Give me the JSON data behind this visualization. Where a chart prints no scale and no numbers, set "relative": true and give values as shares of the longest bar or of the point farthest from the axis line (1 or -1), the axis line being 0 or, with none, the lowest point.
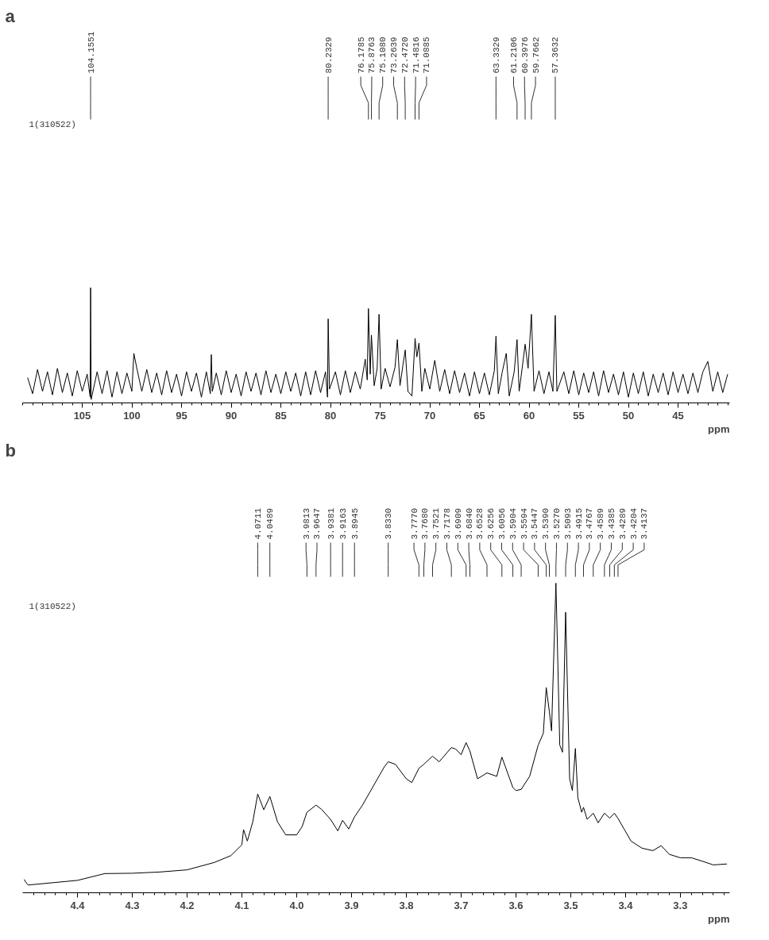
{
  "chart_data": [
    {
      "type": "line",
      "title": "a",
      "xlabel": "ppm",
      "relative": true,
      "xlim": [
        111,
        39.8
      ],
      "xticks": [
        105,
        100,
        95,
        90,
        85,
        80,
        75,
        70,
        65,
        60,
        55,
        50,
        45
      ],
      "grid": false,
      "marker": "none",
      "line_style": "solid",
      "annotations": [
        "1(310522)",
        {
          "text": "104.1551",
          "x": 104.1551
        },
        {
          "text": "80.2329",
          "x": 80.2329
        },
        {
          "text": "76.1785",
          "x": 76.1785
        },
        {
          "text": "75.8763",
          "x": 75.8763
        },
        {
          "text": "75.1080",
          "x": 75.108
        },
        {
          "text": "73.2639",
          "x": 73.2639
        },
        {
          "text": "72.4720",
          "x": 72.472
        },
        {
          "text": "71.4816",
          "x": 71.4816
        },
        {
          "text": "71.0885",
          "x": 71.0885
        },
        {
          "text": "63.3329",
          "x": 63.3329
        },
        {
          "text": "61.2106",
          "x": 61.2106
        },
        {
          "text": "60.3976",
          "x": 60.3976
        },
        {
          "text": "59.7662",
          "x": 59.7662
        },
        {
          "text": "57.3632",
          "x": 57.3632
        }
      ],
      "series": [
        {
          "color": "#000000",
          "x": [
            110.5,
            110,
            109.5,
            109,
            108.5,
            108,
            107.5,
            107,
            106.5,
            106,
            105.5,
            105,
            104.5,
            104.2,
            104.1551,
            104.1,
            103.5,
            103,
            102.5,
            102,
            101.5,
            101,
            100.5,
            100,
            99.8,
            99.5,
            99,
            98.5,
            98,
            97.5,
            97,
            96.5,
            96,
            95.5,
            95,
            94.5,
            94,
            93.5,
            93,
            92.5,
            92.1,
            92,
            91.9,
            91.5,
            91,
            90.5,
            90,
            89.5,
            89,
            88.5,
            88,
            87.5,
            87,
            86.5,
            86,
            85.5,
            85,
            84.5,
            84,
            83.5,
            83,
            82.5,
            82,
            81.5,
            81,
            80.5,
            80.3,
            80.2329,
            80.1,
            79.5,
            79,
            78.5,
            78,
            77.5,
            77,
            76.5,
            76.3,
            76.1785,
            76,
            75.8763,
            75.6,
            75.3,
            75.108,
            74.9,
            74.5,
            74,
            73.5,
            73.2639,
            73,
            72.7,
            72.472,
            72.2,
            71.8,
            71.4816,
            71.3,
            71.0885,
            70.8,
            70.5,
            70,
            69.5,
            69,
            68.5,
            68,
            67.5,
            67,
            66.5,
            66,
            65.5,
            65,
            64.5,
            64,
            63.5,
            63.3329,
            63.1,
            62.7,
            62.3,
            62,
            61.5,
            61.2106,
            61,
            60.7,
            60.3976,
            60.1,
            59.7662,
            59.5,
            59,
            58.5,
            58,
            57.6,
            57.3632,
            57.2,
            56.5,
            56,
            55.5,
            55,
            54.5,
            54,
            53.5,
            53,
            52.5,
            52,
            51.5,
            51,
            50.5,
            50,
            49.5,
            49,
            48.5,
            48,
            47.5,
            47,
            46.5,
            46,
            45.5,
            45,
            44.5,
            44,
            43.5,
            43,
            42.5,
            42,
            41.5,
            41,
            40.5,
            40
          ],
          "values": [
            0.22,
            0.08,
            0.29,
            0.1,
            0.27,
            0.07,
            0.3,
            0.09,
            0.26,
            0.06,
            0.28,
            0.1,
            0.25,
            0.05,
            1.0,
            0.03,
            0.27,
            0.08,
            0.28,
            0.05,
            0.27,
            0.08,
            0.26,
            0.1,
            0.43,
            0.3,
            0.1,
            0.29,
            0.09,
            0.26,
            0.07,
            0.28,
            0.09,
            0.25,
            0.06,
            0.27,
            0.1,
            0.26,
            0.05,
            0.27,
            0.08,
            0.42,
            0.1,
            0.26,
            0.07,
            0.28,
            0.09,
            0.25,
            0.06,
            0.27,
            0.1,
            0.26,
            0.07,
            0.28,
            0.09,
            0.25,
            0.08,
            0.27,
            0.1,
            0.26,
            0.06,
            0.27,
            0.07,
            0.28,
            0.09,
            0.27,
            0.05,
            0.73,
            0.12,
            0.27,
            0.07,
            0.28,
            0.09,
            0.27,
            0.12,
            0.38,
            0.2,
            0.82,
            0.25,
            0.59,
            0.15,
            0.3,
            0.77,
            0.12,
            0.3,
            0.14,
            0.31,
            0.55,
            0.15,
            0.33,
            0.46,
            0.1,
            0.06,
            0.56,
            0.4,
            0.52,
            0.1,
            0.3,
            0.12,
            0.37,
            0.1,
            0.29,
            0.08,
            0.28,
            0.09,
            0.26,
            0.06,
            0.27,
            0.08,
            0.26,
            0.07,
            0.28,
            0.58,
            0.08,
            0.27,
            0.43,
            0.06,
            0.27,
            0.55,
            0.1,
            0.3,
            0.51,
            0.3,
            0.77,
            0.1,
            0.28,
            0.08,
            0.27,
            0.1,
            0.76,
            0.1,
            0.27,
            0.08,
            0.28,
            0.07,
            0.26,
            0.09,
            0.27,
            0.06,
            0.28,
            0.09,
            0.25,
            0.07,
            0.27,
            0.05,
            0.26,
            0.08,
            0.27,
            0.06,
            0.25,
            0.09,
            0.26,
            0.07,
            0.27,
            0.09,
            0.25,
            0.08,
            0.26,
            0.09,
            0.27,
            0.36,
            0.1,
            0.27,
            0.09,
            0.25
          ]
        }
      ]
    },
    {
      "type": "line",
      "title": "b",
      "xlabel": "ppm",
      "relative": true,
      "xlim": [
        4.5,
        3.21
      ],
      "xticks": [
        4.4,
        4.3,
        4.2,
        4.1,
        {
          "value": 4.0,
          "label": "4.0"
        },
        3.9,
        3.8,
        3.7,
        3.6,
        3.5,
        3.4,
        3.3
      ],
      "grid": false,
      "marker": "none",
      "line_style": "solid",
      "annotations": [
        "1(310522)",
        {
          "text": "4.0711",
          "x": 4.0711
        },
        {
          "text": "4.0489",
          "x": 4.0489
        },
        {
          "text": "3.9813",
          "x": 3.9813
        },
        {
          "text": "3.9647",
          "x": 3.9647
        },
        {
          "text": "3.9381",
          "x": 3.9381
        },
        {
          "text": "3.9163",
          "x": 3.9163
        },
        {
          "text": "3.8945",
          "x": 3.8945
        },
        {
          "text": "3.8330",
          "x": 3.833
        },
        {
          "text": "3.7770",
          "x": 3.777
        },
        {
          "text": "3.7680",
          "x": 3.768
        },
        {
          "text": "3.7521",
          "x": 3.7521
        },
        {
          "text": "3.7178",
          "x": 3.7178
        },
        {
          "text": "3.6909",
          "x": 3.6909
        },
        {
          "text": "3.6840",
          "x": 3.684
        },
        {
          "text": "3.6528",
          "x": 3.6528
        },
        {
          "text": "3.6256",
          "x": 3.6256
        },
        {
          "text": "3.6056",
          "x": 3.6056
        },
        {
          "text": "3.5904",
          "x": 3.5904
        },
        {
          "text": "3.5594",
          "x": 3.5594
        },
        {
          "text": "3.5447",
          "x": 3.5447
        },
        {
          "text": "3.5390",
          "x": 3.539
        },
        {
          "text": "3.5270",
          "x": 3.527
        },
        {
          "text": "3.5093",
          "x": 3.5093
        },
        {
          "text": "3.4915",
          "x": 3.4915
        },
        {
          "text": "3.4767",
          "x": 3.4767
        },
        {
          "text": "3.4589",
          "x": 3.4589
        },
        {
          "text": "3.4385",
          "x": 3.4385
        },
        {
          "text": "3.4289",
          "x": 3.4289
        },
        {
          "text": "3.4204",
          "x": 3.4204
        },
        {
          "text": "3.4137",
          "x": 3.4137
        }
      ],
      "series": [
        {
          "color": "#000000",
          "x": [
            4.497,
            4.495,
            4.49,
            4.4,
            4.35,
            4.3,
            4.25,
            4.2,
            4.15,
            4.12,
            4.1,
            4.097,
            4.09,
            4.08,
            4.0711,
            4.06,
            4.0489,
            4.035,
            4.02,
            4.0,
            3.99,
            3.9813,
            3.9647,
            3.955,
            3.9381,
            3.93,
            3.925,
            3.9163,
            3.905,
            3.8945,
            3.88,
            3.86,
            3.84,
            3.833,
            3.82,
            3.8,
            3.79,
            3.777,
            3.768,
            3.7521,
            3.74,
            3.7178,
            3.71,
            3.7,
            3.6909,
            3.684,
            3.67,
            3.6528,
            3.635,
            3.6256,
            3.6056,
            3.6,
            3.5904,
            3.575,
            3.5594,
            3.55,
            3.5447,
            3.539,
            3.535,
            3.527,
            3.52,
            3.515,
            3.5093,
            3.502,
            3.497,
            3.4915,
            3.487,
            3.48,
            3.4767,
            3.47,
            3.4589,
            3.45,
            3.4385,
            3.4289,
            3.4204,
            3.4137,
            3.39,
            3.37,
            3.35,
            3.335,
            3.32,
            3.3,
            3.28,
            3.26,
            3.24,
            3.215
          ],
          "values": [
            0.043,
            0.036,
            0.025,
            0.04,
            0.062,
            0.063,
            0.067,
            0.074,
            0.098,
            0.12,
            0.155,
            0.204,
            0.167,
            0.23,
            0.319,
            0.268,
            0.311,
            0.229,
            0.187,
            0.187,
            0.214,
            0.26,
            0.283,
            0.27,
            0.237,
            0.214,
            0.2,
            0.234,
            0.206,
            0.245,
            0.283,
            0.345,
            0.407,
            0.423,
            0.415,
            0.368,
            0.356,
            0.402,
            0.415,
            0.441,
            0.423,
            0.469,
            0.464,
            0.446,
            0.485,
            0.458,
            0.368,
            0.387,
            0.376,
            0.438,
            0.34,
            0.33,
            0.334,
            0.376,
            0.477,
            0.515,
            0.663,
            0.585,
            0.523,
            1.0,
            0.477,
            0.454,
            0.906,
            0.368,
            0.33,
            0.466,
            0.307,
            0.26,
            0.276,
            0.237,
            0.257,
            0.226,
            0.257,
            0.241,
            0.257,
            0.24,
            0.167,
            0.144,
            0.136,
            0.152,
            0.124,
            0.113,
            0.113,
            0.102,
            0.09,
            0.093
          ]
        }
      ]
    }
  ]
}
